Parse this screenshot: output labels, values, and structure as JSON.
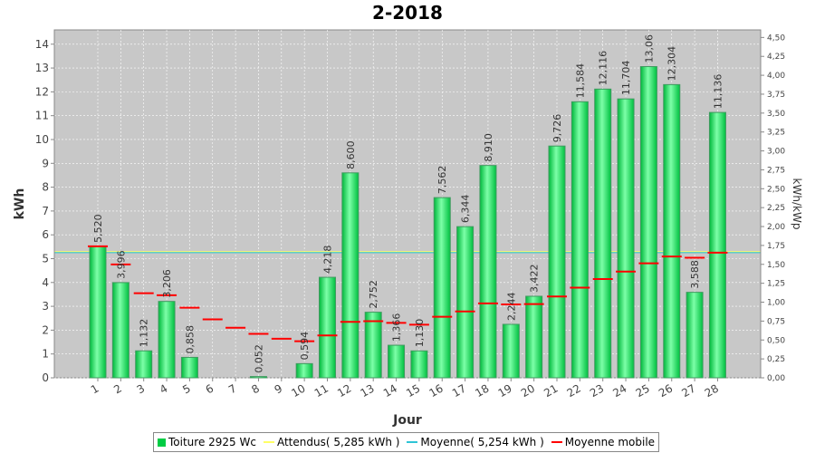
{
  "chart_data": {
    "type": "bar",
    "title": "2-2018",
    "xlabel": "Jour",
    "ylabel": "kWh",
    "ylabel_right": "kWh/kWp",
    "ylim": [
      0,
      14.6
    ],
    "ylim_right": [
      0,
      4.6
    ],
    "yticks": [
      "0",
      "1",
      "2",
      "3",
      "4",
      "5",
      "6",
      "7",
      "8",
      "9",
      "10",
      "11",
      "12",
      "13",
      "14"
    ],
    "yticks_right": [
      "0,00",
      "0,25",
      "0,50",
      "0,75",
      "1,00",
      "1,25",
      "1,50",
      "1,75",
      "2,00",
      "2,25",
      "2,50",
      "2,75",
      "3,00",
      "3,25",
      "3,50",
      "3,75",
      "4,00",
      "4,25",
      "4,50"
    ],
    "categories": [
      "1",
      "2",
      "3",
      "4",
      "5",
      "6",
      "7",
      "8",
      "9",
      "10",
      "11",
      "12",
      "13",
      "14",
      "15",
      "16",
      "17",
      "18",
      "19",
      "20",
      "21",
      "22",
      "23",
      "24",
      "25",
      "26",
      "27",
      "28"
    ],
    "series": [
      {
        "name": "Toiture 2925 Wc",
        "values": [
          5.52,
          3.996,
          1.132,
          3.206,
          0.858,
          0,
          0,
          0.052,
          0,
          0.594,
          4.218,
          8.6,
          2.752,
          1.366,
          1.13,
          7.562,
          6.344,
          8.91,
          2.244,
          3.422,
          9.726,
          11.584,
          12.116,
          11.704,
          13.06,
          12.304,
          3.588,
          11.136
        ],
        "labels": [
          "5,520",
          "3,996",
          "1,132",
          "3,206",
          "0,858",
          "",
          "",
          "0,052",
          "",
          "0,594",
          "4,218",
          "8,600",
          "2,752",
          "1,366",
          "1,130",
          "7,562",
          "6,344",
          "8,910",
          "2,244",
          "3,422",
          "9,726",
          "11,584",
          "12,116",
          "11,704",
          "13,06",
          "12,304",
          "3,588",
          "11,136"
        ]
      },
      {
        "name": "Attendus( 5,285 kWh )",
        "value": 5.285
      },
      {
        "name": "Moyenne( 5,254 kWh )",
        "value": 5.254
      },
      {
        "name": "Moyenne mobile",
        "values": [
          5.52,
          4.758,
          3.549,
          3.464,
          2.942,
          2.452,
          2.101,
          1.845,
          1.64,
          1.535,
          1.779,
          2.347,
          2.378,
          2.306,
          2.228,
          2.561,
          2.784,
          3.124,
          3.078,
          3.095,
          3.411,
          3.782,
          4.144,
          4.46,
          4.804,
          5.092,
          5.036,
          5.254
        ]
      }
    ],
    "colors": {
      "bar": "#00cc44",
      "bar_light": "#7dffa8",
      "bar_edge": "#3f9a5f",
      "attendus": "#ffff66",
      "moyenne": "#2ec4d6",
      "mobile": "#ff0000",
      "plot_bg": "#c8c8c8"
    },
    "grid": true,
    "legend": "bottom"
  }
}
